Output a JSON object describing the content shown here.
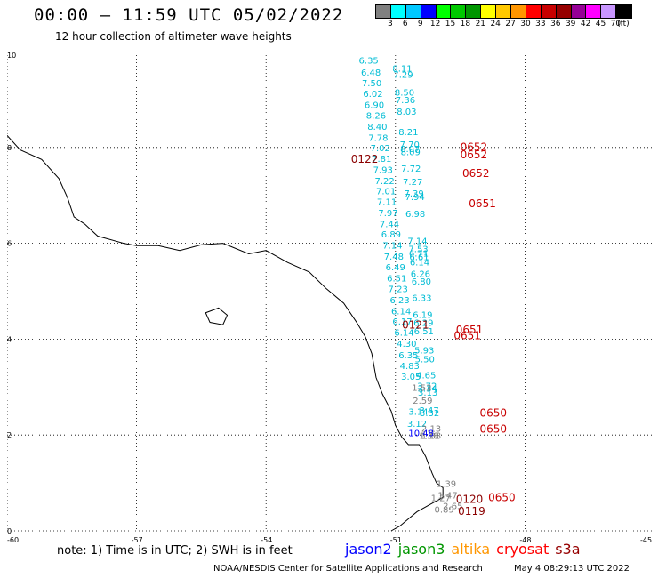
{
  "header": {
    "title": "00:00 – 11:59 UTC 05/02/2022",
    "subtitle": "12 hour collection of altimeter wave heights"
  },
  "colorbar": {
    "colors": [
      "#808080",
      "#00ffff",
      "#00c8ff",
      "#0000ff",
      "#00ff00",
      "#00c800",
      "#009600",
      "#ffff00",
      "#ffc800",
      "#ff9600",
      "#ff0000",
      "#c80000",
      "#960000",
      "#960096",
      "#ff00ff",
      "#c896ff",
      "#000000"
    ],
    "tick_labels": [
      "3",
      "6",
      "9",
      "12",
      "15",
      "18",
      "21",
      "24",
      "27",
      "30",
      "33",
      "36",
      "39",
      "42",
      "45",
      "70",
      "(ft)"
    ]
  },
  "note": "note: 1) Time is in UTC; 2) SWH is in feet",
  "satellites": [
    {
      "name": "jason2",
      "color": "#0000ff"
    },
    {
      "name": "jason3",
      "color": "#009600"
    },
    {
      "name": "altika",
      "color": "#ff9600"
    },
    {
      "name": "cryosat",
      "color": "#ff0000"
    },
    {
      "name": "s3a",
      "color": "#960000"
    }
  ],
  "footer": {
    "credit": "NOAA/NESDIS Center for Satellite Applications and Research",
    "timestamp": "May  4 08:29:13 UTC 2022"
  },
  "chart_data": {
    "type": "scatter",
    "xlim": [
      -60,
      -45
    ],
    "ylim": [
      0,
      10
    ],
    "x_ticks": [
      -60,
      -57,
      -54,
      -51,
      -48,
      -45
    ],
    "x_tick_labels": [
      "-60",
      "-57",
      "-54",
      "-51",
      "-48",
      "-45"
    ],
    "y_ticks": [
      0,
      2,
      4,
      6,
      8,
      10
    ],
    "y_tick_labels": [
      "0",
      "2",
      "4",
      "6",
      "8",
      "10"
    ],
    "grid": true,
    "series": [
      {
        "name": "track-a",
        "color": "#00bcd4",
        "points": [
          {
            "x": -51.85,
            "y": 9.75,
            "label": "6.35"
          },
          {
            "x": -51.8,
            "y": 9.5,
            "label": "6.48"
          },
          {
            "x": -51.78,
            "y": 9.28,
            "label": "7.50"
          },
          {
            "x": -51.75,
            "y": 9.05,
            "label": "6.02"
          },
          {
            "x": -51.72,
            "y": 8.82,
            "label": "6.90"
          },
          {
            "x": -51.68,
            "y": 8.6,
            "label": "8.26"
          },
          {
            "x": -51.65,
            "y": 8.37,
            "label": "8.40"
          },
          {
            "x": -51.63,
            "y": 8.14,
            "label": "7.78"
          },
          {
            "x": -51.58,
            "y": 7.92,
            "label": "7.02"
          },
          {
            "x": -51.55,
            "y": 7.7,
            "label": "7.81"
          },
          {
            "x": -51.52,
            "y": 7.47,
            "label": "7.93"
          },
          {
            "x": -51.48,
            "y": 7.24,
            "label": "7.22"
          },
          {
            "x": -51.45,
            "y": 7.02,
            "label": "7.01"
          },
          {
            "x": -51.43,
            "y": 6.8,
            "label": "7.11"
          },
          {
            "x": -51.4,
            "y": 6.57,
            "label": "7.97"
          },
          {
            "x": -51.37,
            "y": 6.34,
            "label": "7.44"
          },
          {
            "x": -51.33,
            "y": 6.12,
            "label": "6.89"
          },
          {
            "x": -51.3,
            "y": 5.89,
            "label": "7.14"
          },
          {
            "x": -51.27,
            "y": 5.66,
            "label": "7.48"
          },
          {
            "x": -51.23,
            "y": 5.44,
            "label": "6.49"
          },
          {
            "x": -51.2,
            "y": 5.2,
            "label": "6.51"
          },
          {
            "x": -51.17,
            "y": 4.98,
            "label": "7.23"
          },
          {
            "x": -51.13,
            "y": 4.75,
            "label": "6.23"
          },
          {
            "x": -51.1,
            "y": 4.52,
            "label": "6.14"
          },
          {
            "x": -51.07,
            "y": 4.3,
            "label": "6.17"
          },
          {
            "x": -51.03,
            "y": 4.07,
            "label": "6.14"
          },
          {
            "x": -50.97,
            "y": 3.84,
            "label": "4.30"
          },
          {
            "x": -50.93,
            "y": 3.6,
            "label": "6.35"
          },
          {
            "x": -50.9,
            "y": 3.38,
            "label": "4.83"
          },
          {
            "x": -50.87,
            "y": 3.15,
            "label": "3.05"
          },
          {
            "x": -50.7,
            "y": 2.42,
            "label": "3.14"
          },
          {
            "x": -50.73,
            "y": 2.17,
            "label": "3.12"
          }
        ]
      },
      {
        "name": "track-b",
        "color": "#00bcd4",
        "points": [
          {
            "x": -51.07,
            "y": 9.58,
            "label": "8.11"
          },
          {
            "x": -51.05,
            "y": 9.45,
            "label": "7.29"
          },
          {
            "x": -51.02,
            "y": 9.08,
            "label": "8.50"
          },
          {
            "x": -51.0,
            "y": 8.92,
            "label": "7.36"
          },
          {
            "x": -50.97,
            "y": 8.68,
            "label": "8.03"
          },
          {
            "x": -50.93,
            "y": 8.26,
            "label": "8.21"
          },
          {
            "x": -50.9,
            "y": 8.0,
            "label": "7.70"
          },
          {
            "x": -50.89,
            "y": 7.9,
            "label": "8.07"
          },
          {
            "x": -50.88,
            "y": 7.84,
            "label": "8.09"
          },
          {
            "x": -50.87,
            "y": 7.5,
            "label": "7.72"
          },
          {
            "x": -50.83,
            "y": 7.22,
            "label": "7.27"
          },
          {
            "x": -50.8,
            "y": 6.98,
            "label": "7.39"
          },
          {
            "x": -50.78,
            "y": 6.9,
            "label": "7.94"
          },
          {
            "x": -50.77,
            "y": 6.55,
            "label": "6.98"
          },
          {
            "x": -50.72,
            "y": 5.98,
            "label": "7.14"
          },
          {
            "x": -50.7,
            "y": 5.82,
            "label": "7.53"
          },
          {
            "x": -50.69,
            "y": 5.72,
            "label": "6.71"
          },
          {
            "x": -50.68,
            "y": 5.65,
            "label": "6.61"
          },
          {
            "x": -50.67,
            "y": 5.54,
            "label": "6.14"
          },
          {
            "x": -50.65,
            "y": 5.3,
            "label": "6.26"
          },
          {
            "x": -50.63,
            "y": 5.14,
            "label": "6.80"
          },
          {
            "x": -50.62,
            "y": 4.8,
            "label": "6.33"
          },
          {
            "x": -50.6,
            "y": 4.44,
            "label": "6.19"
          },
          {
            "x": -50.58,
            "y": 4.28,
            "label": "6.29"
          },
          {
            "x": -50.57,
            "y": 4.1,
            "label": "6.51"
          },
          {
            "x": -50.56,
            "y": 3.7,
            "label": "5.93"
          },
          {
            "x": -50.55,
            "y": 3.52,
            "label": "5.50"
          },
          {
            "x": -50.52,
            "y": 3.18,
            "label": "4.65"
          },
          {
            "x": -50.5,
            "y": 2.96,
            "label": "3.72"
          },
          {
            "x": -50.49,
            "y": 2.9,
            "label": "3.34"
          },
          {
            "x": -50.48,
            "y": 2.82,
            "label": "3.13"
          },
          {
            "x": -50.45,
            "y": 2.45,
            "label": "3.47"
          },
          {
            "x": -50.44,
            "y": 2.39,
            "label": "3.32"
          }
        ]
      },
      {
        "name": "track-grey",
        "color": "#808080",
        "points": [
          {
            "x": -50.62,
            "y": 2.92,
            "label": "1.53"
          },
          {
            "x": -50.6,
            "y": 2.65,
            "label": "2.59"
          },
          {
            "x": -50.4,
            "y": 2.07,
            "label": "2.13"
          },
          {
            "x": -50.4,
            "y": 1.92,
            "label": "1.88"
          },
          {
            "x": -50.45,
            "y": 1.92,
            "label": "1.88"
          },
          {
            "x": -50.05,
            "y": 0.92,
            "label": "1.39"
          },
          {
            "x": -50.02,
            "y": 0.68,
            "label": "1.47"
          },
          {
            "x": -50.18,
            "y": 0.62,
            "label": "1.27"
          },
          {
            "x": -49.9,
            "y": 0.45,
            "label": "2.65"
          },
          {
            "x": -50.1,
            "y": 0.38,
            "label": "0.89"
          }
        ]
      },
      {
        "name": "track-blue",
        "color": "#0000ff",
        "points": [
          {
            "x": -50.7,
            "y": 1.98,
            "label": "10.48"
          }
        ]
      },
      {
        "name": "time-labels",
        "color": "#c80000",
        "points": [
          {
            "x": -49.5,
            "y": 7.93,
            "label": "0652"
          },
          {
            "x": -49.5,
            "y": 7.77,
            "label": "0652"
          },
          {
            "x": -49.45,
            "y": 7.38,
            "label": "0652"
          },
          {
            "x": -49.3,
            "y": 6.75,
            "label": "0651"
          },
          {
            "x": -49.6,
            "y": 4.12,
            "label": "0651"
          },
          {
            "x": -49.65,
            "y": 4.0,
            "label": "0651"
          },
          {
            "x": -49.05,
            "y": 2.38,
            "label": "0650"
          },
          {
            "x": -49.05,
            "y": 2.05,
            "label": "0650"
          },
          {
            "x": -48.85,
            "y": 0.62,
            "label": "0650"
          }
        ]
      },
      {
        "name": "time-labels-dark",
        "color": "#8b0000",
        "points": [
          {
            "x": -52.03,
            "y": 7.68,
            "label": "0122"
          },
          {
            "x": -50.85,
            "y": 4.22,
            "label": "0121"
          },
          {
            "x": -49.6,
            "y": 0.58,
            "label": "0120"
          },
          {
            "x": -49.55,
            "y": 0.33,
            "label": "0119"
          }
        ]
      }
    ]
  }
}
